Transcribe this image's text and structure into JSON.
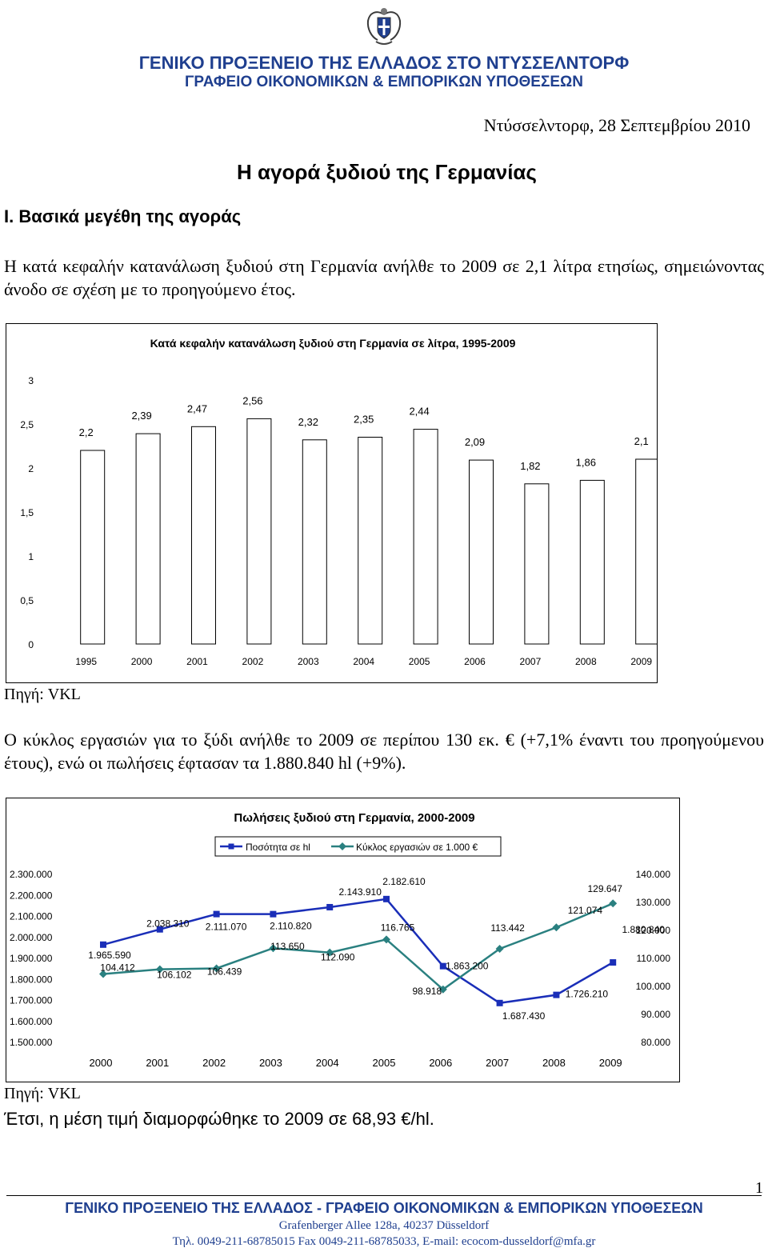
{
  "header": {
    "line1": "ΓΕΝΙΚΟ ΠΡΟΞΕΝΕΙΟ ΤΗΣ ΕΛΛΑΔΟΣ ΣΤΟ ΝΤΥΣΣΕΛΝΤΟΡΦ",
    "line2": "ΓΡΑΦΕΙΟ ΟΙΚΟΝΟΜΙΚΩΝ & ΕΜΠΟΡΙΚΩΝ ΥΠΟΘΕΣΕΩΝ",
    "emblem_icon": "greek-emblem-icon"
  },
  "date": "Ντύσσελντορφ, 28 Σεπτεμβρίου 2010",
  "title": "Η αγορά ξυδιού της Γερμανίας",
  "section": "Ι. Βασικά μεγέθη της αγοράς",
  "para1": "Η κατά κεφαλήν κατανάλωση ξυδιού στη Γερμανία ανήλθε το 2009 σε 2,1 λίτρα ετησίως, σημειώνοντας άνοδο σε σχέση με το προηγούμενο έτος.",
  "source1": "Πηγή: VKL",
  "para2": "Ο κύκλος εργασιών για το ξύδι ανήλθε το 2009 σε περίπου 130 εκ. € (+7,1% έναντι του προηγούμενου έτους), ενώ οι πωλήσεις έφτασαν τα 1.880.840 hl (+9%).",
  "source2": "Πηγή: VKL",
  "para3": "Έτσι, η μέση τιμή διαμορφώθηκε το 2009 σε 68,93 €/hl.",
  "footer": {
    "page_number": "1",
    "line1": "ΓΕΝΙΚΟ ΠΡΟΞΕΝΕΙΟ ΤΗΣ ΕΛΛΑΔΟΣ - ΓΡΑΦΕΙΟ ΟΙΚΟΝΟΜΙΚΩΝ & ΕΜΠΟΡΙΚΩΝ ΥΠΟΘΕΣΕΩΝ",
    "line2": "Grafenberger Allee 128a, 40237 Düsseldorf",
    "line3": "Τηλ. 0049-211-68785015 Fax 0049-211-68785033, E-mail: ecocom-dusseldorf@mfa.gr"
  },
  "colors": {
    "header_blue": "#1f3f8f",
    "bar_fill": "#ffffff",
    "series1": "#1a2eb8",
    "series2": "#2a8080"
  },
  "chart_data": [
    {
      "type": "bar",
      "title": "Κατά κεφαλήν κατανάλωση ξυδιού στη Γερμανία σε λίτρα, 1995-2009",
      "categories": [
        "1995",
        "2000",
        "2001",
        "2002",
        "2003",
        "2004",
        "2005",
        "2006",
        "2007",
        "2008",
        "2009"
      ],
      "values": [
        2.2,
        2.39,
        2.47,
        2.56,
        2.32,
        2.35,
        2.44,
        2.09,
        1.82,
        1.86,
        2.1
      ],
      "value_labels": [
        "2,2",
        "2,39",
        "2,47",
        "2,56",
        "2,32",
        "2,35",
        "2,44",
        "2,09",
        "1,82",
        "1,86",
        "2,1"
      ],
      "ylim": [
        0,
        3
      ],
      "yticks": [
        0,
        0.5,
        1,
        1.5,
        2,
        2.5,
        3
      ],
      "ytick_labels": [
        "0",
        "0,5",
        "1",
        "1,5",
        "2",
        "2,5",
        "3"
      ],
      "grid": false
    },
    {
      "type": "line",
      "title": "Πωλήσεις ξυδιού στη Γερμανία, 2000-2009",
      "categories": [
        "2000",
        "2001",
        "2002",
        "2003",
        "2004",
        "2005",
        "2006",
        "2007",
        "2008",
        "2009"
      ],
      "legend_position": "top",
      "series": [
        {
          "name": "Ποσότητα σε hl",
          "axis": "left",
          "marker": "square",
          "values": [
            1965590,
            2038310,
            2111070,
            2110820,
            2143910,
            2182610,
            1863200,
            1687430,
            1726210,
            1880840
          ],
          "value_labels": [
            "1.965.590",
            "2.038.310",
            "2.111.070",
            "2.110.820",
            "2.143.910",
            "2.182.610",
            "1.863.200",
            "1.687.430",
            "1.726.210",
            "1.880.840"
          ]
        },
        {
          "name": "Κύκλος εργασιών σε 1.000 €",
          "axis": "right",
          "marker": "diamond",
          "values": [
            104412,
            106102,
            106439,
            113650,
            112090,
            116765,
            98918,
            113442,
            121074,
            129647
          ],
          "value_labels": [
            "104.412",
            "106.102",
            "106.439",
            "113.650",
            "112.090",
            "116.765",
            "98.918",
            "113.442",
            "121.074",
            "129.647"
          ]
        }
      ],
      "y_left": {
        "ylim": [
          1500000,
          2300000
        ],
        "ticks": [
          1500000,
          1600000,
          1700000,
          1800000,
          1900000,
          2000000,
          2100000,
          2200000,
          2300000
        ],
        "tick_labels": [
          "1.500.000",
          "1.600.000",
          "1.700.000",
          "1.800.000",
          "1.900.000",
          "2.000.000",
          "2.100.000",
          "2.200.000",
          "2.300.000"
        ]
      },
      "y_right": {
        "ylim": [
          80000,
          140000
        ],
        "ticks": [
          80000,
          90000,
          100000,
          110000,
          120000,
          130000,
          140000
        ],
        "tick_labels": [
          "80.000",
          "90.000",
          "100.000",
          "110.000",
          "120.000",
          "130.000",
          "140.000"
        ]
      },
      "grid": false
    }
  ]
}
